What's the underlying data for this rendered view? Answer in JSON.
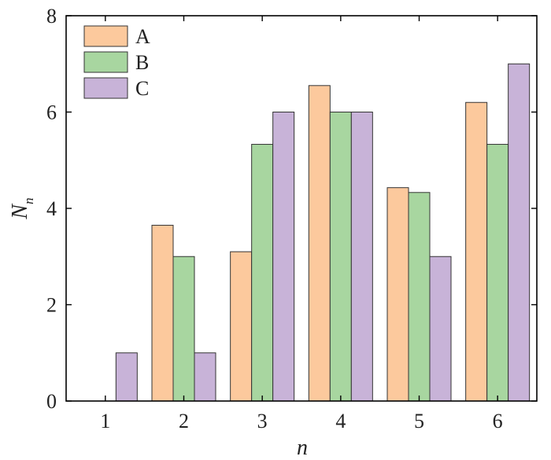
{
  "chart_data": {
    "type": "bar",
    "title": "",
    "xlabel": "n",
    "ylabel": "N",
    "ylabel_subscript": "n",
    "categories": [
      "1",
      "2",
      "3",
      "4",
      "5",
      "6"
    ],
    "ylim": [
      0,
      8
    ],
    "yticks": [
      "0",
      "2",
      "4",
      "6",
      "8"
    ],
    "grid": false,
    "legend_position": "top-left",
    "series": [
      {
        "name": "A",
        "color": "#fcc99d",
        "values": [
          0,
          3.65,
          3.1,
          6.55,
          4.43,
          6.2
        ]
      },
      {
        "name": "B",
        "color": "#a8d6a0",
        "values": [
          0,
          3.0,
          5.33,
          6.0,
          4.33,
          5.33
        ]
      },
      {
        "name": "C",
        "color": "#c8b3d8",
        "values": [
          1.0,
          1.0,
          6.0,
          6.0,
          3.0,
          7.0
        ]
      }
    ]
  }
}
